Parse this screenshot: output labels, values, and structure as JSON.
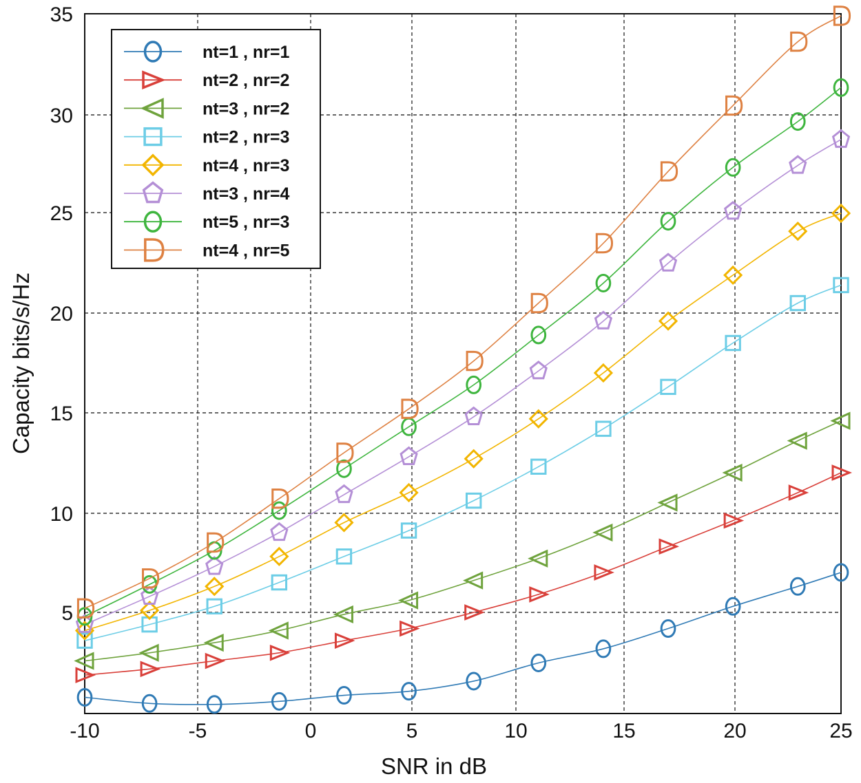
{
  "chart_data": {
    "type": "line",
    "title": "",
    "xlabel": "SNR in dB",
    "ylabel": "Capacity bits/s/Hz",
    "x_tick_labels": [
      "-10",
      "-5",
      "0",
      "5",
      "10",
      "15",
      "20",
      "25"
    ],
    "y_tick_labels": [
      "5",
      "10",
      "15",
      "20",
      "25",
      "30",
      "35"
    ],
    "grid": true,
    "legend_position": "top-left",
    "series": [
      {
        "name": "nt=1  , nr=1",
        "color": "#2f7ab5",
        "marker": "circle",
        "x": [
          -10,
          -7,
          -4,
          -1,
          2,
          5,
          8,
          11,
          14,
          17,
          20,
          23,
          25
        ],
        "y": [
          0.8,
          0.5,
          0.45,
          0.6,
          0.9,
          1.1,
          1.6,
          2.5,
          3.2,
          4.2,
          5.3,
          6.3,
          7.0
        ]
      },
      {
        "name": "nt=2  , nr=2",
        "color": "#d9403a",
        "marker": "triangle-right",
        "x": [
          -10,
          -7,
          -4,
          -1,
          2,
          5,
          8,
          11,
          14,
          17,
          20,
          23,
          25
        ],
        "y": [
          1.9,
          2.2,
          2.6,
          3.0,
          3.6,
          4.2,
          5.0,
          5.9,
          7.0,
          8.3,
          9.6,
          11.0,
          12.0
        ]
      },
      {
        "name": "nt=3  , nr=2",
        "color": "#6fa33d",
        "marker": "triangle-left",
        "x": [
          -10,
          -7,
          -4,
          -1,
          2,
          5,
          8,
          11,
          14,
          17,
          20,
          23,
          25
        ],
        "y": [
          2.6,
          3.0,
          3.5,
          4.1,
          4.9,
          5.6,
          6.6,
          7.7,
          9.0,
          10.5,
          12.0,
          13.6,
          14.6
        ]
      },
      {
        "name": "nt=2  , nr=3",
        "color": "#6ccde6",
        "marker": "square",
        "x": [
          -10,
          -7,
          -4,
          -1,
          2,
          5,
          8,
          11,
          14,
          17,
          20,
          23,
          25
        ],
        "y": [
          3.6,
          4.4,
          5.3,
          6.5,
          7.8,
          9.1,
          10.6,
          12.3,
          14.2,
          16.3,
          18.5,
          20.5,
          21.4
        ]
      },
      {
        "name": "nt=4  , nr=3",
        "color": "#f2b500",
        "marker": "diamond",
        "x": [
          -10,
          -7,
          -4,
          -1,
          2,
          5,
          8,
          11,
          14,
          17,
          20,
          23,
          25
        ],
        "y": [
          4.1,
          5.1,
          6.3,
          7.8,
          9.5,
          11.0,
          12.7,
          14.7,
          17.0,
          19.6,
          21.9,
          24.1,
          25.0
        ]
      },
      {
        "name": "nt=3  , nr=4",
        "color": "#b48fd6",
        "marker": "pentagon",
        "x": [
          -10,
          -7,
          -4,
          -1,
          2,
          5,
          8,
          11,
          14,
          17,
          20,
          23,
          25
        ],
        "y": [
          4.4,
          5.8,
          7.3,
          9.0,
          10.9,
          12.8,
          14.8,
          17.1,
          19.6,
          22.5,
          25.1,
          27.4,
          28.7
        ]
      },
      {
        "name": "nt=5  , nr=3",
        "color": "#3eb53e",
        "marker": "circle",
        "x": [
          -10,
          -7,
          -4,
          -1,
          2,
          5,
          8,
          11,
          14,
          17,
          20,
          23,
          25
        ],
        "y": [
          4.8,
          6.4,
          8.1,
          10.1,
          12.2,
          14.3,
          16.4,
          18.9,
          21.5,
          24.6,
          27.3,
          29.6,
          31.3
        ]
      },
      {
        "name": "nt=4  , nr=5",
        "color": "#de8142",
        "marker": "D",
        "x": [
          -10,
          -7,
          -4,
          -1,
          2,
          5,
          8,
          11,
          14,
          17,
          20,
          23,
          25
        ],
        "y": [
          5.2,
          6.7,
          8.5,
          10.7,
          13.0,
          15.2,
          17.6,
          20.5,
          23.5,
          27.1,
          30.4,
          33.6,
          34.9
        ]
      }
    ]
  }
}
